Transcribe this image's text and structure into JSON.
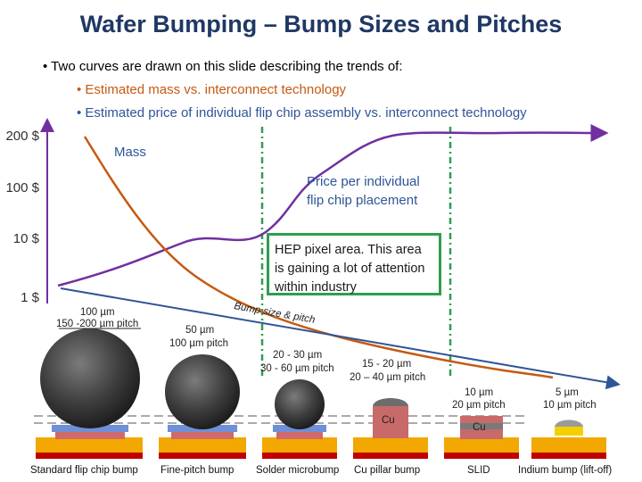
{
  "title": "Wafer Bumping – Bump Sizes and Pitches",
  "bullets": {
    "intro": "• Two curves are drawn on this slide describing the trends of:",
    "mass": "• Estimated mass vs. interconnect technology",
    "price": "• Estimated price of individual flip chip assembly vs. interconnect technology"
  },
  "y_axis_labels": [
    "200 $",
    "100 $",
    "10 $",
    "1 $"
  ],
  "curve_labels": {
    "mass": "Mass",
    "price_line1": "Price per individual",
    "price_line2": "flip chip placement"
  },
  "hep_note": "HEP pixel area. This area is gaining a lot of attention within industry",
  "diagram": {
    "axis_label": "Bump size & pitch",
    "sizes": {
      "s1_line1": "100 µm",
      "s1_line2": "150 -200 µm pitch",
      "s2_line1": "50 µm",
      "s2_line2": "100 µm pitch",
      "s3_line1": "20 - 30 µm",
      "s3_line2": "30 - 60 µm pitch",
      "s4_line1": "15 - 20 µm",
      "s4_line2": "20 – 40 µm pitch",
      "s5_line1": "10 µm",
      "s5_line2": "20 µm pitch",
      "s6_line1": "5 µm",
      "s6_line2": "10 µm pitch"
    },
    "bump_labels": {
      "cu": "Cu",
      "cu_slid": "Cu"
    },
    "captions": [
      "Standard flip chip bump",
      "Fine-pitch bump",
      "Solder microbump",
      "Cu pillar bump",
      "SLID",
      "Indium bump (lift-off)"
    ]
  },
  "colors": {
    "title": "#1f3864",
    "mass_curve": "#c55a11",
    "price_curve": "#7030a0",
    "trend_line": "#2f5597",
    "hep_box": "#2e9e4f"
  }
}
